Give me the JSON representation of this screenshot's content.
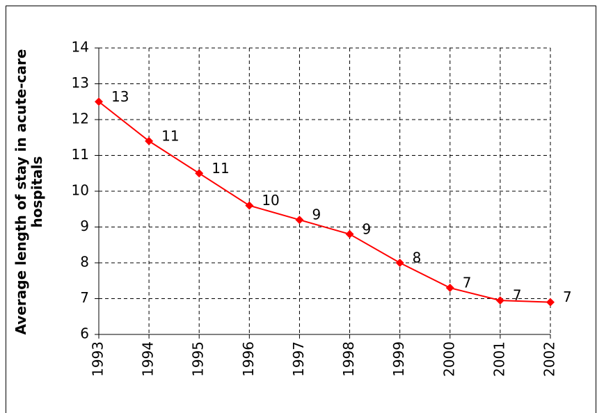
{
  "chart_data": {
    "type": "line",
    "y_label": "Average length of stay in acute-care hospitals",
    "categories": [
      "1993",
      "1994",
      "1995",
      "1996",
      "1997",
      "1998",
      "1999",
      "2000",
      "2001",
      "2002"
    ],
    "series": [
      {
        "color": "#ff0000",
        "values": [
          12.5,
          11.4,
          10.5,
          9.6,
          9.2,
          8.8,
          8.0,
          7.3,
          6.95,
          6.9
        ],
        "value_labels": [
          "13",
          "11",
          "11",
          "10",
          "9",
          "9",
          "8",
          "7",
          "7",
          "7"
        ]
      }
    ],
    "ylim": [
      6,
      14
    ],
    "yticks": [
      6,
      7,
      8,
      9,
      10,
      11,
      12,
      13,
      14
    ],
    "grid": true
  }
}
